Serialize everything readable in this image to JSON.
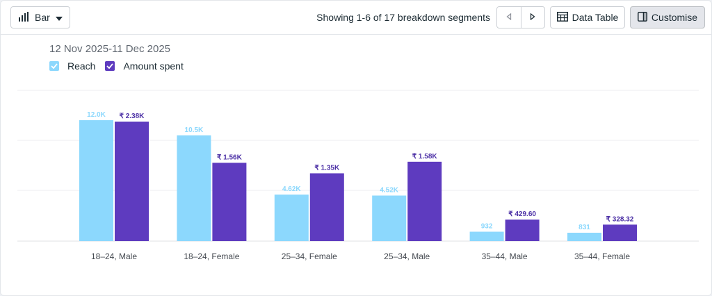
{
  "toolbar": {
    "chart_type_label": "Bar",
    "segments_text": "Showing 1-6 of 17 breakdown segments",
    "data_table_label": "Data Table",
    "customise_label": "Customise"
  },
  "date_range": "12 Nov 2025-11 Dec 2025",
  "colors": {
    "reach": "#8cd8fd",
    "amount": "#5e3bbf",
    "reach_label": "#8cd8fd",
    "amount_label": "#4b2fa5"
  },
  "chart_data": {
    "type": "bar",
    "title": "",
    "xlabel": "",
    "ylabel": "",
    "categories": [
      "18–24, Male",
      "18–24, Female",
      "25–34, Female",
      "25–34, Male",
      "35–44, Male",
      "35–44, Female"
    ],
    "series": [
      {
        "name": "Reach",
        "values": [
          12000,
          10500,
          4620,
          4520,
          932,
          831
        ],
        "labels": [
          "12.0K",
          "10.5K",
          "4.62K",
          "4.52K",
          "932",
          "831"
        ]
      },
      {
        "name": "Amount spent",
        "values": [
          2380,
          1560,
          1350,
          1580,
          429.6,
          328.32
        ],
        "labels": [
          "₹ 2.38K",
          "₹ 1.56K",
          "₹ 1.35K",
          "₹ 1.58K",
          "₹ 429.60",
          "₹ 328.32"
        ]
      }
    ],
    "legend": [
      "Reach",
      "Amount spent"
    ],
    "grid": true
  }
}
